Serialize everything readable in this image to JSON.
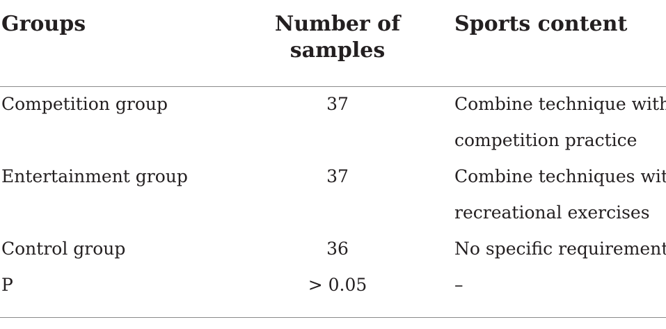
{
  "table": {
    "headers": {
      "groups": "Groups",
      "samples_line1": "Number of",
      "samples_line2": "samples",
      "content": "Sports content"
    },
    "rows": [
      {
        "group": "Competition group",
        "samples": "37",
        "content_line1": "Combine technique with",
        "content_line2": "competition practice"
      },
      {
        "group": "Entertainment group",
        "samples": "37",
        "content_line1": "Combine techniques with",
        "content_line2": "recreational exercises"
      },
      {
        "group": "Control group",
        "samples": "36",
        "content_line1": "No specific requirements",
        "content_line2": ""
      },
      {
        "group": "P",
        "samples": "> 0.05",
        "content_line1": "–",
        "content_line2": ""
      }
    ]
  }
}
